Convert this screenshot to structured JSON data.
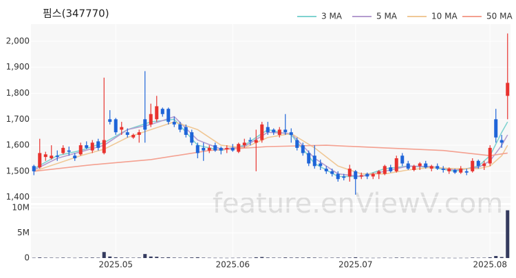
{
  "chart_data": {
    "type": "candlestick",
    "title": "핌스(347770)",
    "watermark": "feature.enViewV.com",
    "up_color": "#e8322e",
    "down_color": "#1e64d8",
    "volume_color": "#343a5e",
    "open": [
      1520,
      1515,
      1555,
      1550,
      1560,
      1570,
      1580,
      1560,
      1565,
      1600,
      1580,
      1615,
      1570,
      1700,
      1700,
      1660,
      1650,
      1630,
      1640,
      1700,
      1680,
      1700,
      1740,
      1740,
      1690,
      1680,
      1670,
      1650,
      1600,
      1590,
      1580,
      1600,
      1590,
      1585,
      1590,
      1575,
      1600,
      1620,
      1610,
      1620,
      1670,
      1660,
      1640,
      1660,
      1650,
      1620,
      1600,
      1570,
      1560,
      1530,
      1510,
      1500,
      1490,
      1480,
      1480,
      1500,
      1480,
      1490,
      1480,
      1490,
      1490,
      1515,
      1500,
      1560,
      1530,
      1505,
      1520,
      1530,
      1510,
      1520,
      1510,
      1500,
      1505,
      1495,
      1500,
      1500,
      1540,
      1520,
      1530,
      1700,
      1620,
      1790
    ],
    "high": [
      1525,
      1625,
      1575,
      1600,
      1580,
      1600,
      1595,
      1570,
      1610,
      1615,
      1620,
      1625,
      1860,
      1735,
      1705,
      1690,
      1665,
      1645,
      1660,
      1885,
      1760,
      1790,
      1745,
      1745,
      1710,
      1690,
      1680,
      1660,
      1610,
      1610,
      1600,
      1610,
      1595,
      1600,
      1605,
      1610,
      1625,
      1630,
      1660,
      1690,
      1690,
      1665,
      1670,
      1720,
      1665,
      1630,
      1610,
      1580,
      1600,
      1545,
      1520,
      1510,
      1500,
      1490,
      1525,
      1505,
      1495,
      1495,
      1495,
      1505,
      1525,
      1525,
      1560,
      1570,
      1540,
      1525,
      1535,
      1540,
      1525,
      1530,
      1520,
      1515,
      1510,
      1520,
      1510,
      1550,
      1545,
      1540,
      1600,
      1740,
      1640,
      2030
    ],
    "low": [
      1485,
      1510,
      1540,
      1545,
      1540,
      1565,
      1560,
      1540,
      1560,
      1585,
      1570,
      1580,
      1565,
      1680,
      1640,
      1640,
      1630,
      1625,
      1610,
      1610,
      1670,
      1690,
      1710,
      1680,
      1670,
      1650,
      1630,
      1600,
      1550,
      1540,
      1570,
      1575,
      1565,
      1570,
      1575,
      1570,
      1590,
      1600,
      1500,
      1610,
      1640,
      1640,
      1630,
      1640,
      1610,
      1580,
      1560,
      1520,
      1510,
      1505,
      1490,
      1480,
      1460,
      1465,
      1460,
      1410,
      1470,
      1470,
      1470,
      1470,
      1485,
      1495,
      1495,
      1520,
      1505,
      1500,
      1505,
      1510,
      1500,
      1505,
      1495,
      1490,
      1490,
      1490,
      1485,
      1495,
      1510,
      1505,
      1520,
      1610,
      1590,
      1700
    ],
    "close": [
      1500,
      1570,
      1565,
      1560,
      1555,
      1590,
      1575,
      1550,
      1600,
      1590,
      1610,
      1590,
      1620,
      1690,
      1650,
      1670,
      1640,
      1640,
      1650,
      1660,
      1720,
      1750,
      1720,
      1690,
      1680,
      1660,
      1640,
      1610,
      1570,
      1580,
      1590,
      1580,
      1580,
      1590,
      1580,
      1605,
      1610,
      1615,
      1620,
      1680,
      1650,
      1650,
      1660,
      1650,
      1640,
      1590,
      1570,
      1530,
      1520,
      1520,
      1500,
      1490,
      1470,
      1475,
      1510,
      1470,
      1485,
      1480,
      1490,
      1500,
      1520,
      1500,
      1550,
      1530,
      1510,
      1520,
      1530,
      1515,
      1520,
      1510,
      1505,
      1510,
      1495,
      1510,
      1495,
      1540,
      1520,
      1530,
      1590,
      1630,
      1610,
      1840
    ],
    "volume": [
      60000,
      120000,
      80000,
      70000,
      60000,
      90000,
      70000,
      50000,
      90000,
      80000,
      100000,
      80000,
      1200000,
      300000,
      150000,
      100000,
      80000,
      70000,
      90000,
      800000,
      300000,
      250000,
      120000,
      150000,
      90000,
      80000,
      90000,
      120000,
      150000,
      80000,
      60000,
      50000,
      50000,
      40000,
      50000,
      60000,
      70000,
      60000,
      150000,
      200000,
      100000,
      80000,
      70000,
      120000,
      90000,
      100000,
      90000,
      110000,
      90000,
      70000,
      60000,
      70000,
      80000,
      60000,
      90000,
      150000,
      60000,
      50000,
      40000,
      50000,
      70000,
      50000,
      90000,
      80000,
      60000,
      50000,
      50000,
      40000,
      40000,
      50000,
      40000,
      40000,
      30000,
      40000,
      40000,
      90000,
      60000,
      70000,
      150000,
      400000,
      200000,
      9500000
    ],
    "series": [
      {
        "name": "3 MA",
        "color": "#7fd3d0",
        "x": [
          0,
          4,
          8,
          12,
          16,
          20,
          24,
          28,
          32,
          36,
          40,
          44,
          48,
          52,
          56,
          60,
          64,
          68,
          72,
          76,
          78,
          80,
          81
        ],
        "values": [
          1510,
          1560,
          1580,
          1610,
          1660,
          1690,
          1700,
          1600,
          1580,
          1600,
          1660,
          1640,
          1530,
          1480,
          1480,
          1510,
          1520,
          1515,
          1500,
          1520,
          1560,
          1650,
          1690
        ]
      },
      {
        "name": "5 MA",
        "color": "#b49ccf",
        "x": [
          0,
          4,
          8,
          12,
          16,
          20,
          24,
          28,
          32,
          36,
          40,
          44,
          48,
          52,
          56,
          60,
          64,
          68,
          72,
          76,
          78,
          80,
          81
        ],
        "values": [
          1505,
          1550,
          1575,
          1600,
          1660,
          1680,
          1710,
          1620,
          1585,
          1595,
          1650,
          1645,
          1550,
          1490,
          1480,
          1500,
          1520,
          1518,
          1505,
          1515,
          1540,
          1600,
          1640
        ]
      },
      {
        "name": "10 MA",
        "color": "#f0c896",
        "x": [
          0,
          4,
          8,
          12,
          16,
          20,
          24,
          28,
          32,
          36,
          40,
          44,
          48,
          52,
          56,
          60,
          64,
          68,
          72,
          76,
          78,
          80,
          81
        ],
        "values": [
          1500,
          1530,
          1560,
          1585,
          1630,
          1660,
          1690,
          1660,
          1600,
          1590,
          1630,
          1645,
          1590,
          1520,
          1490,
          1490,
          1505,
          1515,
          1510,
          1510,
          1520,
          1560,
          1600
        ]
      },
      {
        "name": "50 MA",
        "color": "#f4a090",
        "x": [
          0,
          10,
          20,
          30,
          40,
          50,
          60,
          70,
          78,
          81
        ],
        "values": [
          1500,
          1525,
          1545,
          1580,
          1595,
          1600,
          1590,
          1580,
          1560,
          1570
        ]
      }
    ],
    "xlim": [
      -0.5,
      81.5
    ],
    "xticks": [
      {
        "value": 14,
        "label": "2025.05"
      },
      {
        "value": 34,
        "label": "2025.06"
      },
      {
        "value": 55,
        "label": "2025.07"
      },
      {
        "value": 78,
        "label": "2025.08"
      }
    ],
    "ylim": [
      1378,
      2066
    ],
    "yticks": [
      {
        "value": 1400,
        "label": "1,400"
      },
      {
        "value": 1500,
        "label": "1,500"
      },
      {
        "value": 1600,
        "label": "1,600"
      },
      {
        "value": 1700,
        "label": "1,700"
      },
      {
        "value": 1800,
        "label": "1,800"
      },
      {
        "value": 1900,
        "label": "1,900"
      },
      {
        "value": 2000,
        "label": "2,000"
      }
    ],
    "vlim": [
      0,
      10540000
    ],
    "vticks": [
      0,
      {
        "value": 5000000,
        "label": "5M"
      },
      {
        "value": 10000000,
        "label": "10M"
      }
    ],
    "grid": true
  }
}
